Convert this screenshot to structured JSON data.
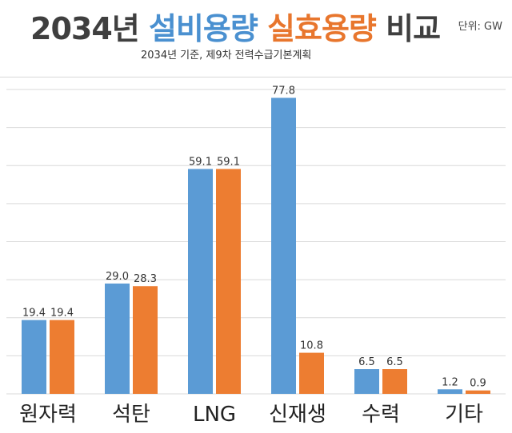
{
  "header": {
    "title_year": "2034년",
    "title_installed": "설비용량",
    "title_effective": "실효용량",
    "title_compare": "비교",
    "unit": "단위: GW",
    "subtitle": "2034년 기준, 제9차 전력수급기본계획"
  },
  "colors": {
    "installed": "#5b9bd5",
    "effective": "#ed7d31",
    "grid": "#d9d9d9",
    "label": "#333333"
  },
  "chart_data": {
    "type": "bar",
    "title": "2034년 설비용량 실효용량 비교",
    "subtitle": "2034년 기준, 제9차 전력수급기본계획",
    "unit": "GW",
    "categories": [
      "원자력",
      "석탄",
      "LNG",
      "신재생",
      "수력",
      "기타"
    ],
    "series": [
      {
        "name": "설비용량",
        "values": [
          19.4,
          29.0,
          59.1,
          77.8,
          6.5,
          1.2
        ]
      },
      {
        "name": "실효용량",
        "values": [
          19.4,
          28.3,
          59.1,
          10.8,
          6.5,
          0.9
        ]
      }
    ],
    "value_labels": [
      [
        "19.4",
        "29.0",
        "59.1",
        "77.8",
        "6.5",
        "1.2"
      ],
      [
        "19.4",
        "28.3",
        "59.1",
        "10.8",
        "6.5",
        "0.9"
      ]
    ],
    "ylim": [
      0,
      80
    ],
    "y_gridlines": [
      0,
      10,
      20,
      30,
      40,
      50,
      60,
      70,
      80
    ],
    "grid": true,
    "legend": "none"
  }
}
